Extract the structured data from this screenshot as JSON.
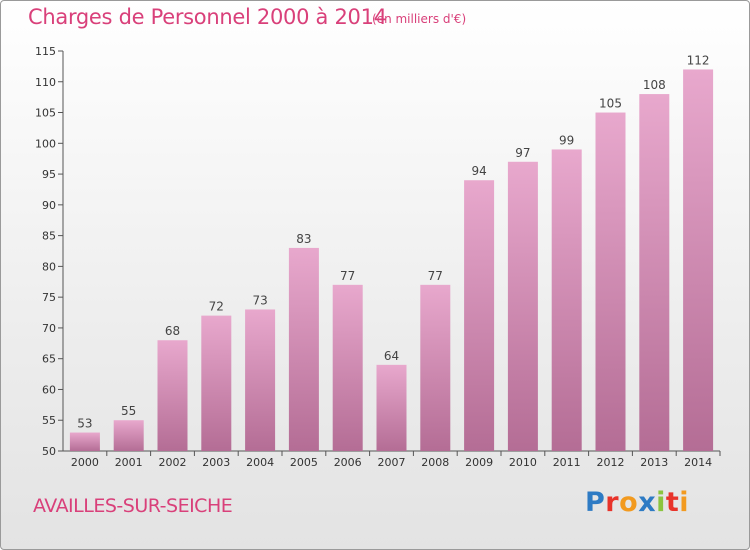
{
  "header": {
    "title": "Charges de Personnel 2000 à 2014",
    "subtitle": "(en milliers d'€)"
  },
  "footer": {
    "commune": "AVAILLES-SUR-SEICHE",
    "brand": "Proxiti",
    "brand_colors": [
      "#2e7bc4",
      "#e8332a",
      "#f29a1f",
      "#2e7bc4",
      "#8bc53f",
      "#e8332a",
      "#f29a1f"
    ]
  },
  "colors": {
    "text_accent": "#d9407a",
    "bar_top": "#e8a8cd",
    "bar_bottom": "#b46d95",
    "axis": "#555555"
  },
  "chart_data": {
    "type": "bar",
    "categories": [
      "2000",
      "2001",
      "2002",
      "2003",
      "2004",
      "2005",
      "2006",
      "2007",
      "2008",
      "2009",
      "2010",
      "2011",
      "2012",
      "2013",
      "2014"
    ],
    "values": [
      53,
      55,
      68,
      72,
      73,
      83,
      77,
      64,
      77,
      94,
      97,
      99,
      105,
      108,
      112
    ],
    "title": "Charges de Personnel 2000 à 2014",
    "subtitle": "(en milliers d'€)",
    "ylim": [
      50,
      115
    ],
    "yticks": [
      50,
      55,
      60,
      65,
      70,
      75,
      80,
      85,
      90,
      95,
      100,
      105,
      110,
      115
    ],
    "grid": false,
    "data_labels": true
  }
}
